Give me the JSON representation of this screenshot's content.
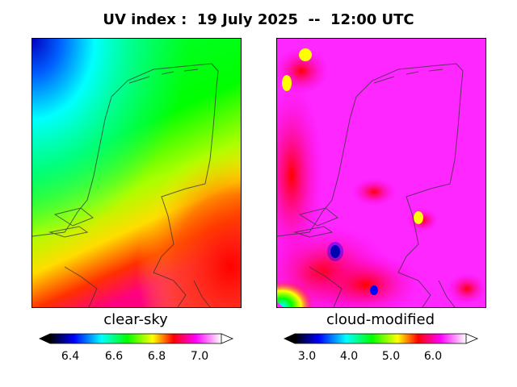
{
  "title": "UV index :  19 July 2025  --  12:00 UTC",
  "panels": [
    {
      "label": "clear-sky",
      "colorbar_ticks": [
        "6.4",
        "6.6",
        "6.8",
        "7.0"
      ]
    },
    {
      "label": "cloud-modified",
      "colorbar_ticks": [
        "3.0",
        "4.0",
        "5.0",
        "6.0"
      ]
    }
  ],
  "colors": {
    "colormap": [
      "#000000",
      "#0000ff",
      "#00ffff",
      "#00ff00",
      "#ffff00",
      "#ff0000",
      "#ff00ff",
      "#ffffff"
    ]
  }
}
